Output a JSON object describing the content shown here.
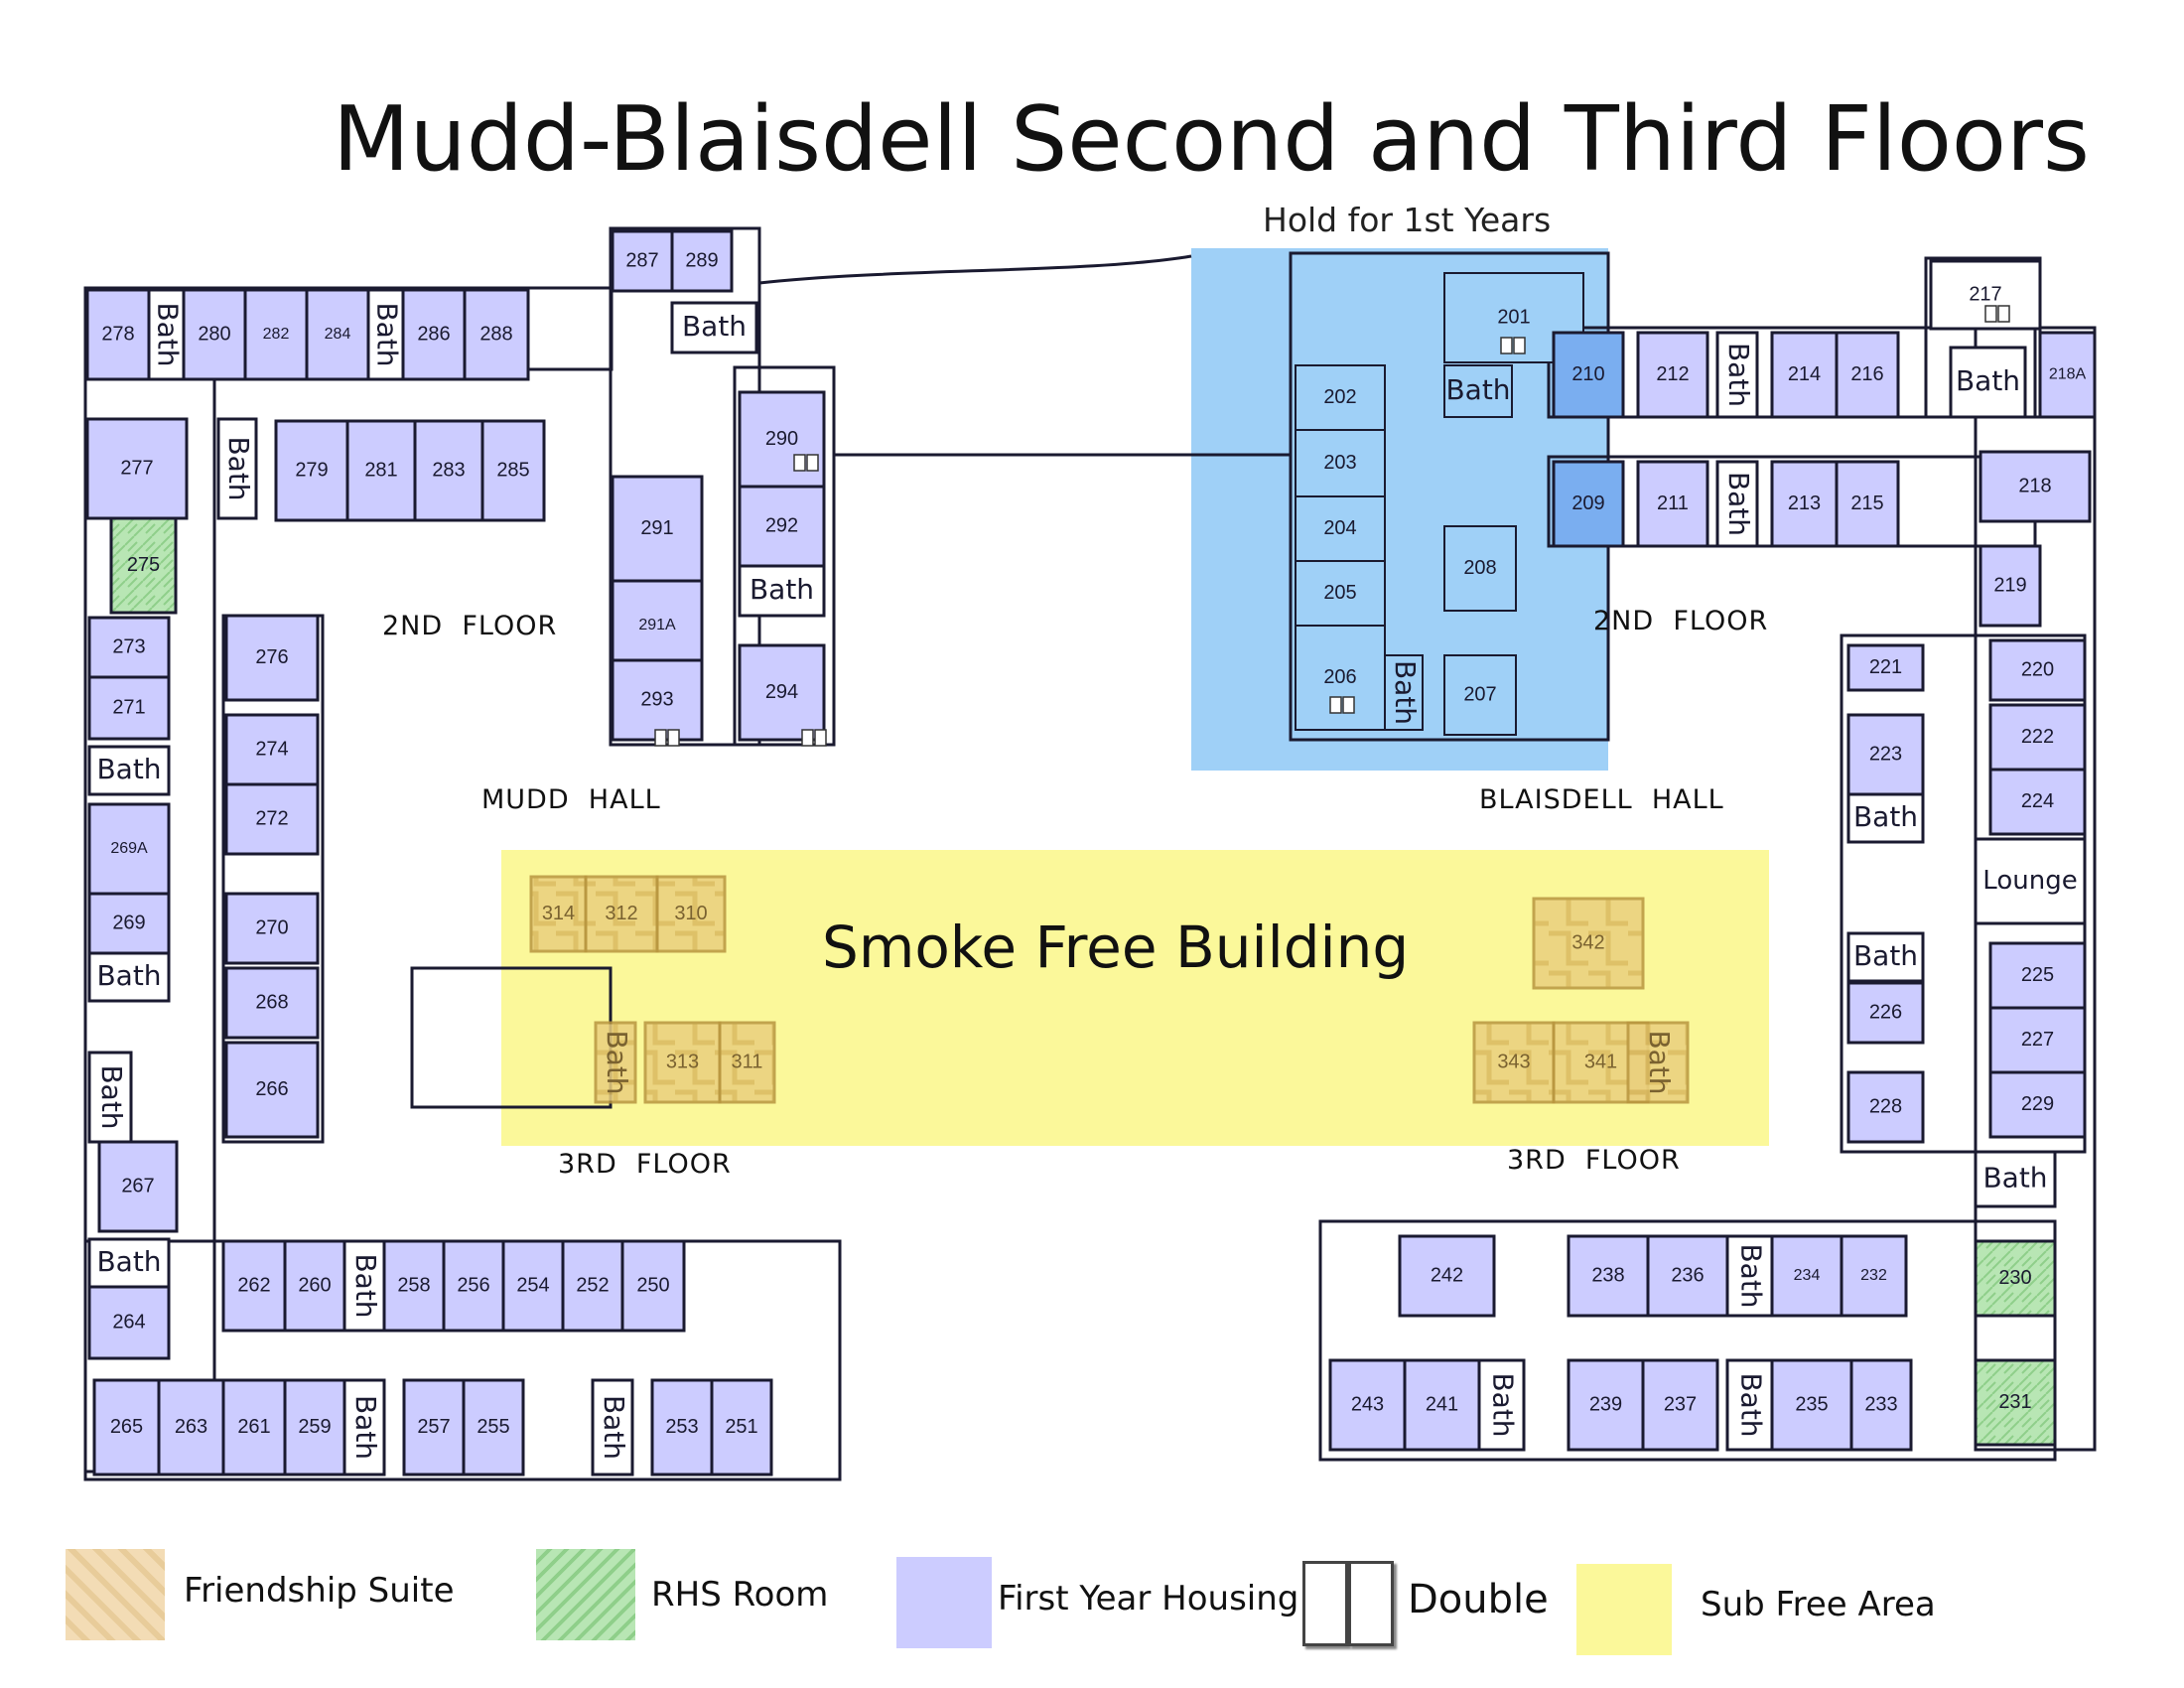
{
  "title": "Mudd-Blaisdell Second and Third Floors",
  "hold_label": "Hold for 1st Years",
  "smoke_free_label": "Smoke Free Building",
  "colors": {
    "first_year": "#ccccff",
    "hold_area": "#9fd0f7",
    "sub_free": "#fbf89a",
    "friendship_suite": "#f3dcb5",
    "rhs_room": "#b8e8b8",
    "wall": "#1a1a30"
  },
  "area_labels": [
    {
      "id": "mudd-2nd-floor",
      "text": "2ND  FLOOR"
    },
    {
      "id": "blaisdell-2nd-floor",
      "text": "2ND  FLOOR"
    },
    {
      "id": "mudd-hall",
      "text": "MUDD  HALL"
    },
    {
      "id": "blaisdell-hall",
      "text": "BLAISDELL  HALL"
    },
    {
      "id": "mudd-3rd-floor",
      "text": "3RD  FLOOR"
    },
    {
      "id": "blaisdell-3rd-floor",
      "text": "3RD  FLOOR"
    }
  ],
  "rooms": [
    {
      "id": "278",
      "label": "278",
      "type": "first_year"
    },
    {
      "id": "bath-a",
      "label": "Bath",
      "type": "bath"
    },
    {
      "id": "280",
      "label": "280",
      "type": "first_year"
    },
    {
      "id": "282",
      "label": "282",
      "type": "first_year"
    },
    {
      "id": "284",
      "label": "284",
      "type": "first_year"
    },
    {
      "id": "bath-b",
      "label": "Bath",
      "type": "bath"
    },
    {
      "id": "286",
      "label": "286",
      "type": "first_year"
    },
    {
      "id": "288",
      "label": "288",
      "type": "first_year"
    },
    {
      "id": "287",
      "label": "287",
      "type": "first_year"
    },
    {
      "id": "289",
      "label": "289",
      "type": "first_year"
    },
    {
      "id": "bath-c",
      "label": "Bath",
      "type": "bath"
    },
    {
      "id": "277",
      "label": "277",
      "type": "first_year"
    },
    {
      "id": "bath-d",
      "label": "Bath",
      "type": "bath"
    },
    {
      "id": "279",
      "label": "279",
      "type": "first_year"
    },
    {
      "id": "281",
      "label": "281",
      "type": "first_year"
    },
    {
      "id": "283",
      "label": "283",
      "type": "first_year"
    },
    {
      "id": "285",
      "label": "285",
      "type": "first_year"
    },
    {
      "id": "290",
      "label": "290",
      "type": "first_year"
    },
    {
      "id": "291",
      "label": "291",
      "type": "first_year"
    },
    {
      "id": "292",
      "label": "292",
      "type": "first_year"
    },
    {
      "id": "bath-e",
      "label": "Bath",
      "type": "bath"
    },
    {
      "id": "291A",
      "label": "291A",
      "type": "first_year"
    },
    {
      "id": "293",
      "label": "293",
      "type": "first_year"
    },
    {
      "id": "294",
      "label": "294",
      "type": "first_year"
    },
    {
      "id": "275",
      "label": "275",
      "type": "rhs"
    },
    {
      "id": "273",
      "label": "273",
      "type": "first_year"
    },
    {
      "id": "271",
      "label": "271",
      "type": "first_year"
    },
    {
      "id": "bath-f",
      "label": "Bath",
      "type": "bath"
    },
    {
      "id": "269A",
      "label": "269A",
      "type": "first_year"
    },
    {
      "id": "269",
      "label": "269",
      "type": "first_year"
    },
    {
      "id": "bath-g",
      "label": "Bath",
      "type": "bath"
    },
    {
      "id": "bath-h",
      "label": "Bath",
      "type": "bath"
    },
    {
      "id": "267",
      "label": "267",
      "type": "first_year"
    },
    {
      "id": "bath-i",
      "label": "Bath",
      "type": "bath"
    },
    {
      "id": "264",
      "label": "264",
      "type": "first_year"
    },
    {
      "id": "276",
      "label": "276",
      "type": "first_year"
    },
    {
      "id": "274",
      "label": "274",
      "type": "first_year"
    },
    {
      "id": "272",
      "label": "272",
      "type": "first_year"
    },
    {
      "id": "270",
      "label": "270",
      "type": "first_year"
    },
    {
      "id": "268",
      "label": "268",
      "type": "first_year"
    },
    {
      "id": "266",
      "label": "266",
      "type": "first_year"
    },
    {
      "id": "262",
      "label": "262",
      "type": "first_year"
    },
    {
      "id": "260",
      "label": "260",
      "type": "first_year"
    },
    {
      "id": "bath-j",
      "label": "Bath",
      "type": "bath"
    },
    {
      "id": "258",
      "label": "258",
      "type": "first_year"
    },
    {
      "id": "256",
      "label": "256",
      "type": "first_year"
    },
    {
      "id": "254",
      "label": "254",
      "type": "first_year"
    },
    {
      "id": "252",
      "label": "252",
      "type": "first_year"
    },
    {
      "id": "250",
      "label": "250",
      "type": "first_year"
    },
    {
      "id": "265",
      "label": "265",
      "type": "first_year"
    },
    {
      "id": "263",
      "label": "263",
      "type": "first_year"
    },
    {
      "id": "261",
      "label": "261",
      "type": "first_year"
    },
    {
      "id": "259",
      "label": "259",
      "type": "first_year"
    },
    {
      "id": "bath-k",
      "label": "Bath",
      "type": "bath"
    },
    {
      "id": "257",
      "label": "257",
      "type": "first_year"
    },
    {
      "id": "255",
      "label": "255",
      "type": "first_year"
    },
    {
      "id": "bath-l",
      "label": "Bath",
      "type": "bath"
    },
    {
      "id": "253",
      "label": "253",
      "type": "first_year"
    },
    {
      "id": "251",
      "label": "251",
      "type": "first_year"
    },
    {
      "id": "314",
      "label": "314",
      "type": "friendship"
    },
    {
      "id": "312",
      "label": "312",
      "type": "friendship"
    },
    {
      "id": "310",
      "label": "310",
      "type": "friendship"
    },
    {
      "id": "bath-m",
      "label": "Bath",
      "type": "friendship"
    },
    {
      "id": "313",
      "label": "313",
      "type": "friendship"
    },
    {
      "id": "311",
      "label": "311",
      "type": "friendship"
    },
    {
      "id": "342",
      "label": "342",
      "type": "friendship"
    },
    {
      "id": "343",
      "label": "343",
      "type": "friendship"
    },
    {
      "id": "341",
      "label": "341",
      "type": "friendship"
    },
    {
      "id": "bath-n",
      "label": "Bath",
      "type": "friendship"
    },
    {
      "id": "201",
      "label": "201",
      "type": "hold"
    },
    {
      "id": "bath-o",
      "label": "Bath",
      "type": "hold"
    },
    {
      "id": "202",
      "label": "202",
      "type": "hold"
    },
    {
      "id": "203",
      "label": "203",
      "type": "hold"
    },
    {
      "id": "204",
      "label": "204",
      "type": "hold"
    },
    {
      "id": "205",
      "label": "205",
      "type": "hold"
    },
    {
      "id": "206",
      "label": "206",
      "type": "hold"
    },
    {
      "id": "bath-p",
      "label": "Bath",
      "type": "hold"
    },
    {
      "id": "207",
      "label": "207",
      "type": "hold"
    },
    {
      "id": "208",
      "label": "208",
      "type": "hold"
    },
    {
      "id": "210",
      "label": "210",
      "type": "first_year_dark"
    },
    {
      "id": "209",
      "label": "209",
      "type": "first_year_dark"
    },
    {
      "id": "212",
      "label": "212",
      "type": "first_year"
    },
    {
      "id": "bath-q",
      "label": "Bath",
      "type": "bath"
    },
    {
      "id": "214",
      "label": "214",
      "type": "first_year"
    },
    {
      "id": "216",
      "label": "216",
      "type": "first_year"
    },
    {
      "id": "217",
      "label": "217",
      "type": "plain"
    },
    {
      "id": "bath-r",
      "label": "Bath",
      "type": "bath"
    },
    {
      "id": "218A",
      "label": "218A",
      "type": "first_year"
    },
    {
      "id": "211",
      "label": "211",
      "type": "first_year"
    },
    {
      "id": "bath-s",
      "label": "Bath",
      "type": "bath"
    },
    {
      "id": "213",
      "label": "213",
      "type": "first_year"
    },
    {
      "id": "215",
      "label": "215",
      "type": "first_year"
    },
    {
      "id": "218",
      "label": "218",
      "type": "first_year"
    },
    {
      "id": "219",
      "label": "219",
      "type": "first_year"
    },
    {
      "id": "221",
      "label": "221",
      "type": "first_year"
    },
    {
      "id": "223",
      "label": "223",
      "type": "first_year"
    },
    {
      "id": "bath-t",
      "label": "Bath",
      "type": "bath"
    },
    {
      "id": "bath-u",
      "label": "Bath",
      "type": "bath"
    },
    {
      "id": "226",
      "label": "226",
      "type": "first_year"
    },
    {
      "id": "228",
      "label": "228",
      "type": "first_year"
    },
    {
      "id": "220",
      "label": "220",
      "type": "first_year"
    },
    {
      "id": "222",
      "label": "222",
      "type": "first_year"
    },
    {
      "id": "224",
      "label": "224",
      "type": "first_year"
    },
    {
      "id": "lounge",
      "label": "Lounge",
      "type": "plain"
    },
    {
      "id": "225",
      "label": "225",
      "type": "first_year"
    },
    {
      "id": "227",
      "label": "227",
      "type": "first_year"
    },
    {
      "id": "229",
      "label": "229",
      "type": "first_year"
    },
    {
      "id": "bath-v",
      "label": "Bath",
      "type": "bath"
    },
    {
      "id": "230",
      "label": "230",
      "type": "rhs"
    },
    {
      "id": "231",
      "label": "231",
      "type": "rhs"
    },
    {
      "id": "242",
      "label": "242",
      "type": "first_year"
    },
    {
      "id": "238",
      "label": "238",
      "type": "first_year"
    },
    {
      "id": "236",
      "label": "236",
      "type": "first_year"
    },
    {
      "id": "bath-w",
      "label": "Bath",
      "type": "bath"
    },
    {
      "id": "234",
      "label": "234",
      "type": "first_year"
    },
    {
      "id": "232",
      "label": "232",
      "type": "first_year"
    },
    {
      "id": "243",
      "label": "243",
      "type": "first_year"
    },
    {
      "id": "241",
      "label": "241",
      "type": "first_year"
    },
    {
      "id": "bath-x",
      "label": "Bath",
      "type": "bath"
    },
    {
      "id": "239",
      "label": "239",
      "type": "first_year"
    },
    {
      "id": "237",
      "label": "237",
      "type": "first_year"
    },
    {
      "id": "bath-y",
      "label": "Bath",
      "type": "bath"
    },
    {
      "id": "235",
      "label": "235",
      "type": "first_year"
    },
    {
      "id": "233",
      "label": "233",
      "type": "first_year"
    }
  ],
  "doubles": [
    "201",
    "206",
    "290",
    "293",
    "294",
    "217"
  ],
  "legend": [
    {
      "id": "friendship-suite",
      "label": "Friendship Suite",
      "swatch": "friendship"
    },
    {
      "id": "rhs-room",
      "label": "RHS Room",
      "swatch": "rhs"
    },
    {
      "id": "first-year-housing",
      "label": "First Year Housing",
      "swatch": "first_year"
    },
    {
      "id": "double",
      "label": "Double",
      "swatch": "double"
    },
    {
      "id": "sub-free-area",
      "label": "Sub Free Area",
      "swatch": "sub_free"
    }
  ]
}
